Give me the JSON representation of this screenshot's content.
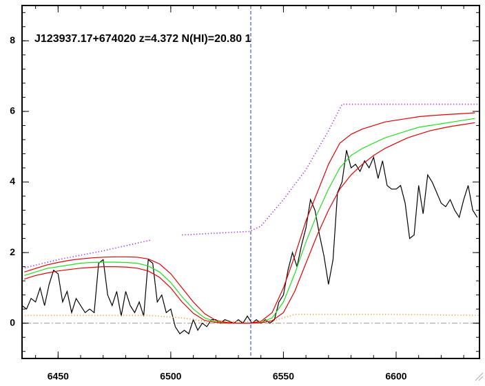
{
  "chart_data": {
    "type": "line",
    "title": "J123937.17+674020 z=4.372 N(HI)=20.80 1",
    "xlim": [
      6434,
      6637
    ],
    "ylim": [
      -1,
      9
    ],
    "xticks": [
      6450,
      6500,
      6550,
      6600
    ],
    "yticks": [
      0,
      2,
      4,
      6,
      8
    ],
    "reference_x": 6535.5,
    "reference_y": 0,
    "series": [
      {
        "color": "#000000",
        "style": "solid",
        "x": [
          6434,
          6436,
          6438,
          6440,
          6442,
          6444,
          6446,
          6448,
          6450,
          6452,
          6454,
          6456,
          6458,
          6460,
          6462,
          6464,
          6466,
          6468,
          6470,
          6472,
          6474,
          6476,
          6478,
          6480,
          6482,
          6484,
          6486,
          6488,
          6490,
          6492,
          6494,
          6496,
          6498,
          6500,
          6502,
          6504,
          6506,
          6508,
          6510,
          6512,
          6514,
          6516,
          6518,
          6520,
          6522,
          6524,
          6526,
          6528,
          6530,
          6532,
          6534,
          6536,
          6538,
          6540,
          6542,
          6544,
          6546,
          6548,
          6550,
          6552,
          6554,
          6556,
          6558,
          6560,
          6562,
          6564,
          6566,
          6568,
          6570,
          6572,
          6574,
          6576,
          6578,
          6580,
          6582,
          6584,
          6586,
          6588,
          6590,
          6592,
          6594,
          6596,
          6598,
          6600,
          6602,
          6604,
          6606,
          6608,
          6610,
          6612,
          6614,
          6616,
          6618,
          6620,
          6622,
          6624,
          6626,
          6628,
          6630,
          6632,
          6634,
          6636
        ],
        "values": [
          0.5,
          0.4,
          0.7,
          0.6,
          1.0,
          0.5,
          1.1,
          1.5,
          1.4,
          0.6,
          0.9,
          0.3,
          0.7,
          0.5,
          0.3,
          0.4,
          0.3,
          1.7,
          1.8,
          0.8,
          0.5,
          0.9,
          0.2,
          0.9,
          0.5,
          0.3,
          0.6,
          0.2,
          1.8,
          1.7,
          0.6,
          0.8,
          0.3,
          0.4,
          -0.1,
          -0.3,
          -0.2,
          -0.3,
          0.1,
          -0.2,
          0.0,
          -0.1,
          0.1,
          0.1,
          0.0,
          0.1,
          0.05,
          0.0,
          0.1,
          0.0,
          0.2,
          0.0,
          0.1,
          0.0,
          0.1,
          0.0,
          0.1,
          0.6,
          0.8,
          1.5,
          2.0,
          1.6,
          2.2,
          2.7,
          3.5,
          3.2,
          2.5,
          1.9,
          1.1,
          1.8,
          3.7,
          4.0,
          4.9,
          4.4,
          4.5,
          4.3,
          4.6,
          4.4,
          4.7,
          4.1,
          4.6,
          3.9,
          3.8,
          3.8,
          3.9,
          3.4,
          2.4,
          2.5,
          3.9,
          3.1,
          4.2,
          4.0,
          3.7,
          3.4,
          3.3,
          3.5,
          3.2,
          3.0,
          3.5,
          3.9,
          3.2,
          3.0
        ]
      },
      {
        "color": "#22dd22",
        "style": "solid",
        "x": [
          6435,
          6440,
          6445,
          6450,
          6455,
          6460,
          6465,
          6470,
          6475,
          6480,
          6485,
          6490,
          6495,
          6500,
          6505,
          6510,
          6515,
          6520,
          6525,
          6530,
          6535,
          6540,
          6545,
          6550,
          6555,
          6560,
          6565,
          6570,
          6575,
          6580,
          6585,
          6590,
          6595,
          6600,
          6605,
          6610,
          6615,
          6620,
          6625,
          6630,
          6635
        ],
        "values": [
          1.35,
          1.45,
          1.55,
          1.6,
          1.65,
          1.7,
          1.72,
          1.73,
          1.73,
          1.72,
          1.7,
          1.62,
          1.45,
          1.15,
          0.75,
          0.4,
          0.15,
          0.04,
          0.01,
          0.0,
          0.0,
          0.02,
          0.15,
          0.6,
          1.4,
          2.3,
          3.1,
          3.8,
          4.4,
          4.75,
          4.95,
          5.1,
          5.25,
          5.35,
          5.45,
          5.55,
          5.6,
          5.65,
          5.7,
          5.75,
          5.8
        ]
      },
      {
        "color": "#e00000",
        "style": "solid",
        "x": [
          6435,
          6440,
          6445,
          6450,
          6455,
          6460,
          6465,
          6470,
          6475,
          6480,
          6485,
          6490,
          6495,
          6500,
          6505,
          6510,
          6515,
          6520,
          6525,
          6530,
          6535,
          6540,
          6545,
          6550,
          6555,
          6560,
          6565,
          6570,
          6575,
          6580,
          6585,
          6590,
          6595,
          6600,
          6605,
          6610,
          6615,
          6620,
          6625,
          6630,
          6635
        ],
        "values": [
          1.45,
          1.55,
          1.65,
          1.72,
          1.78,
          1.82,
          1.85,
          1.87,
          1.88,
          1.88,
          1.87,
          1.82,
          1.68,
          1.4,
          1.0,
          0.6,
          0.27,
          0.08,
          0.02,
          0.0,
          0.0,
          0.05,
          0.3,
          1.0,
          1.9,
          2.9,
          3.7,
          4.5,
          5.1,
          5.35,
          5.5,
          5.6,
          5.7,
          5.75,
          5.8,
          5.85,
          5.88,
          5.9,
          5.92,
          5.94,
          5.96
        ]
      },
      {
        "color": "#e00000",
        "style": "solid",
        "x": [
          6435,
          6440,
          6445,
          6450,
          6455,
          6460,
          6465,
          6470,
          6475,
          6480,
          6485,
          6490,
          6495,
          6500,
          6505,
          6510,
          6515,
          6520,
          6525,
          6530,
          6535,
          6540,
          6545,
          6550,
          6555,
          6560,
          6565,
          6570,
          6575,
          6580,
          6585,
          6590,
          6595,
          6600,
          6605,
          6610,
          6615,
          6620,
          6625,
          6630,
          6635
        ],
        "values": [
          1.25,
          1.35,
          1.42,
          1.48,
          1.52,
          1.56,
          1.58,
          1.6,
          1.6,
          1.59,
          1.56,
          1.48,
          1.3,
          1.0,
          0.6,
          0.28,
          0.08,
          0.02,
          0.0,
          0.0,
          0.0,
          0.01,
          0.07,
          0.3,
          0.9,
          1.7,
          2.5,
          3.2,
          3.8,
          4.2,
          4.5,
          4.75,
          4.95,
          5.1,
          5.25,
          5.35,
          5.45,
          5.52,
          5.58,
          5.63,
          5.68
        ]
      },
      {
        "color": "#a020f0",
        "style": "dotted",
        "x": [
          6434,
          6450,
          6470,
          6491,
          6498,
          6505,
          6520,
          6535,
          6540,
          6550,
          6560,
          6570,
          6576,
          6600,
          6637
        ],
        "values": [
          1.55,
          1.8,
          2.05,
          2.35,
          null,
          2.5,
          2.55,
          2.6,
          2.75,
          3.5,
          4.35,
          5.45,
          6.2,
          6.2,
          6.2
        ]
      },
      {
        "color": "#ff9933",
        "style": "dotted",
        "x": [
          6434,
          6490,
          6505,
          6515,
          6545,
          6555,
          6600,
          6637
        ],
        "values": [
          0.22,
          0.22,
          0.15,
          0.05,
          0.05,
          0.25,
          0.25,
          0.22
        ]
      }
    ]
  }
}
